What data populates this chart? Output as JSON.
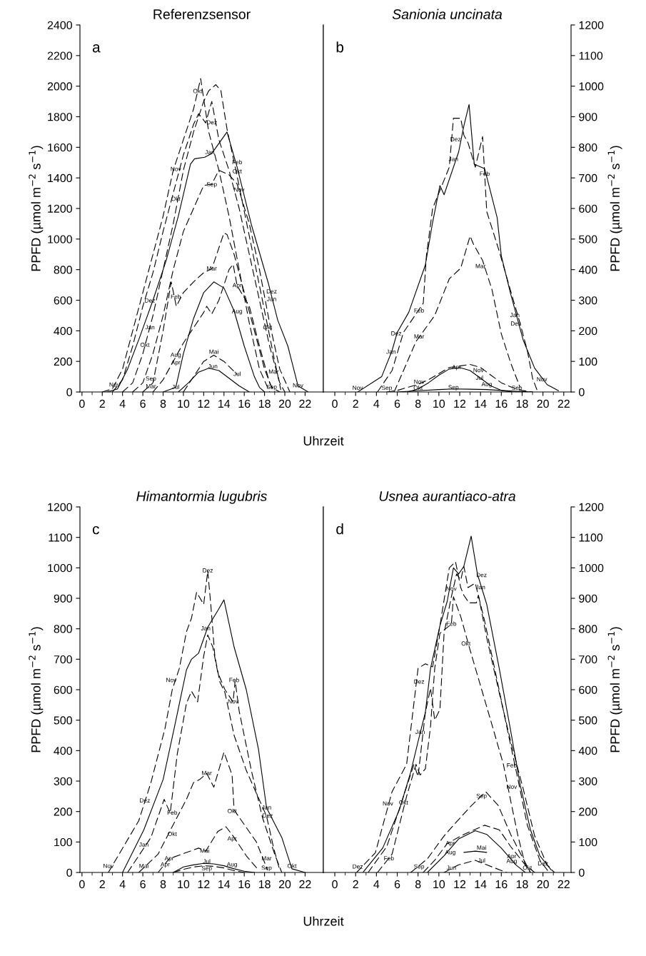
{
  "chart_data": [
    {
      "type": "line",
      "title": "Referenzsensor",
      "xlabel": "Uhrzeit",
      "ylabel": "PPFD (µmol m$^{−2}$ s$^{−1}$)",
      "xlim": [
        -0.2,
        23.8
      ],
      "xticks": [
        0,
        2,
        4,
        6,
        8,
        10,
        12,
        14,
        16,
        18,
        20,
        22
      ],
      "ylim": [
        0,
        2400
      ],
      "yticks": [
        0,
        200,
        400,
        600,
        800,
        1000,
        1200,
        1400,
        1600,
        1800,
        2000,
        2200,
        2400
      ],
      "series": [
        {
          "color": "#000000",
          "line_style": "dashed",
          "x": [
            2,
            3,
            4,
            5,
            6,
            7,
            8,
            9,
            10,
            11,
            11.7,
            12.5,
            13.5,
            14.5,
            15.5,
            16.5,
            17.5,
            18.5
          ],
          "values": [
            0,
            20,
            150,
            400,
            650,
            900,
            1150,
            1450,
            1650,
            1850,
            2050,
            1700,
            1450,
            1150,
            800,
            450,
            150,
            0
          ]
        },
        {
          "color": "#000000",
          "line_style": "dashed",
          "x": [
            4,
            5,
            6,
            7,
            8,
            9,
            10,
            11,
            12,
            12.5,
            13.2,
            13.7,
            14.3,
            15.3,
            16.5,
            17.7,
            18.9,
            19.6
          ],
          "values": [
            0,
            60,
            250,
            500,
            800,
            1100,
            1450,
            1700,
            1900,
            1970,
            2010,
            1970,
            1720,
            1410,
            1020,
            630,
            235,
            15
          ]
        },
        {
          "color": "#000000",
          "line_style": "dashed",
          "x": [
            3,
            4,
            5,
            6,
            7,
            8,
            9,
            10,
            11,
            11.5,
            12.2,
            12.8,
            13.5,
            14.5,
            15.5,
            16.5,
            17.5,
            18.5,
            19.5,
            20
          ],
          "values": [
            0,
            80,
            300,
            560,
            780,
            1050,
            1300,
            1550,
            1750,
            1820,
            1760,
            1900,
            1650,
            1450,
            1200,
            900,
            600,
            300,
            60,
            0
          ]
        },
        {
          "color": "#000000",
          "line_style": "solid",
          "x": [
            2.5,
            3.5,
            4.5,
            5.7,
            7,
            8.3,
            9.5,
            10.7,
            11.1,
            12.1,
            12.8,
            14.3,
            15.3,
            16.7,
            18.4,
            19.3,
            20.3,
            21.3,
            22.3
          ],
          "values": [
            0,
            20,
            150,
            360,
            600,
            860,
            1150,
            1490,
            1525,
            1535,
            1560,
            1700,
            1470,
            1095,
            705,
            470,
            300,
            40,
            0
          ]
        },
        {
          "color": "#000000",
          "line_style": "dashed",
          "x": [
            5,
            6,
            7,
            8,
            9,
            10,
            11,
            12,
            12.8,
            13.5,
            14.5,
            15.3,
            16.5,
            17.5,
            18.5,
            19.5,
            20.5
          ],
          "values": [
            0,
            60,
            250,
            500,
            800,
            1050,
            1200,
            1350,
            1360,
            1450,
            1420,
            1360,
            1100,
            800,
            450,
            150,
            0
          ]
        },
        {
          "color": "#000000",
          "line_style": "dashed",
          "x": [
            6,
            7,
            8,
            8.8,
            9.3,
            10,
            11,
            12,
            12.8,
            14,
            14.3,
            15,
            16,
            17,
            18,
            18.7,
            19.5
          ],
          "values": [
            0,
            60,
            400,
            720,
            560,
            650,
            720,
            780,
            805,
            1040,
            1030,
            900,
            650,
            400,
            150,
            30,
            0
          ]
        },
        {
          "color": "#000000",
          "line_style": "dashed",
          "x": [
            7,
            8,
            9,
            10,
            11,
            12,
            12.3,
            12.8,
            13.5,
            14.5,
            14.9,
            15.3,
            16.5,
            17.5,
            18.5,
            19
          ],
          "values": [
            0,
            80,
            200,
            320,
            420,
            520,
            560,
            510,
            600,
            800,
            835,
            695,
            560,
            300,
            60,
            0
          ]
        },
        {
          "color": "#000000",
          "line_style": "solid",
          "x": [
            8,
            9.25,
            10,
            11,
            12,
            13,
            14,
            15,
            16,
            17,
            17.5,
            18
          ],
          "values": [
            0,
            30,
            250,
            480,
            650,
            720,
            680,
            530,
            300,
            100,
            30,
            0
          ]
        },
        {
          "color": "#000000",
          "line_style": "dashed",
          "x": [
            10,
            11,
            12,
            13,
            14,
            15.3
          ],
          "values": [
            0,
            100,
            200,
            240,
            200,
            115
          ]
        },
        {
          "color": "#000000",
          "line_style": "solid",
          "x": [
            9.5,
            10.5,
            11.5,
            12.5,
            13.5,
            14.5,
            15.5,
            16.5
          ],
          "values": [
            0,
            60,
            130,
            155,
            140,
            90,
            40,
            0
          ]
        }
      ],
      "annotations": [
        "a",
        {
          "text": "Okt",
          "x": 11.4,
          "y": 1965
        },
        {
          "text": "Dez",
          "x": 12.8,
          "y": 1760
        },
        {
          "text": "Jan",
          "x": 12.6,
          "y": 1565
        },
        {
          "text": "Nov",
          "x": 9.25,
          "y": 1455
        },
        {
          "text": "Feb",
          "x": 15.3,
          "y": 1500
        },
        {
          "text": "Okt",
          "x": 15.3,
          "y": 1440
        },
        {
          "text": "Sep",
          "x": 12.8,
          "y": 1355
        },
        {
          "text": "Nov",
          "x": 15.5,
          "y": 1320
        },
        {
          "text": "Okt",
          "x": 9.25,
          "y": 1260
        },
        {
          "text": "Mar",
          "x": 12.8,
          "y": 805
        },
        {
          "text": "Apr",
          "x": 15.3,
          "y": 695
        },
        {
          "text": "Dez",
          "x": 6.7,
          "y": 595
        },
        {
          "text": "Feb",
          "x": 9.25,
          "y": 620
        },
        {
          "text": "Dez",
          "x": 18.7,
          "y": 655
        },
        {
          "text": "Jan",
          "x": 18.7,
          "y": 605
        },
        {
          "text": "Aug",
          "x": 15.3,
          "y": 525
        },
        {
          "text": "Jan",
          "x": 6.7,
          "y": 420
        },
        {
          "text": "Okt",
          "x": 6.2,
          "y": 305
        },
        {
          "text": "Okt",
          "x": 18.3,
          "y": 420
        },
        {
          "text": "Aug",
          "x": 9.25,
          "y": 240
        },
        {
          "text": "Apr",
          "x": 9.25,
          "y": 190
        },
        {
          "text": "Mai",
          "x": 13,
          "y": 260
        },
        {
          "text": "Jun",
          "x": 12.9,
          "y": 165
        },
        {
          "text": "Jul",
          "x": 15.3,
          "y": 115
        },
        {
          "text": "Mar",
          "x": 18.9,
          "y": 130
        },
        {
          "text": "Sep",
          "x": 6.8,
          "y": 85
        },
        {
          "text": "Mar",
          "x": 6.8,
          "y": 35
        },
        {
          "text": "Jul",
          "x": 9.25,
          "y": 30
        },
        {
          "text": "Sep",
          "x": 18.7,
          "y": 30
        },
        {
          "text": "Nov",
          "x": 3.2,
          "y": 45
        },
        {
          "text": "Nov",
          "x": 21.3,
          "y": 40
        }
      ]
    },
    {
      "type": "line",
      "title": "Sanionia uncinata",
      "ylabel": "PPFD (µmol m$^{−2}$ s$^{−1}$)",
      "xlim": [
        -1.1,
        22.7
      ],
      "xticks": [
        0,
        2,
        4,
        6,
        8,
        10,
        12,
        14,
        16,
        18,
        20,
        22
      ],
      "ylim": [
        0,
        1200
      ],
      "yticks": [
        0,
        100,
        200,
        300,
        400,
        500,
        600,
        700,
        800,
        900,
        1000,
        1100,
        1200
      ],
      "series": [
        {
          "color": "#000000",
          "line_style": "solid",
          "x": [
            2.2,
            4.5,
            5.5,
            6.0,
            7.1,
            8.7,
            9.4,
            10.1,
            10.5,
            11.9,
            12.4,
            12.9,
            13.4,
            14.4,
            15.6,
            16,
            16.9,
            18.1,
            19.2,
            20.4,
            21.5
          ],
          "values": [
            0,
            50,
            135,
            195,
            260,
            415,
            555,
            675,
            645,
            785,
            870,
            940,
            745,
            730,
            570,
            445,
            320,
            170,
            78,
            24,
            4
          ]
        },
        {
          "color": "#000000",
          "line_style": "dashed",
          "x": [
            4.1,
            5.5,
            6.6,
            8.5,
            8.8,
            9.4,
            11,
            11.4,
            12.1,
            12.4,
            12.8,
            13.5,
            14.2,
            14.6,
            15.8,
            16.9,
            17.8,
            18.5,
            19,
            19.5
          ],
          "values": [
            0,
            70,
            195,
            290,
            445,
            600,
            735,
            895,
            895,
            840,
            815,
            735,
            835,
            590,
            460,
            330,
            225,
            135,
            45,
            0
          ]
        },
        {
          "color": "#000000",
          "line_style": "dashed",
          "x": [
            5.7,
            6.6,
            7.8,
            9.6,
            11,
            12.1,
            13,
            13.3,
            14.2,
            15.1,
            16,
            16.9,
            17.8
          ],
          "values": [
            0,
            70,
            165,
            250,
            370,
            405,
            510,
            485,
            430,
            335,
            190,
            95,
            15
          ]
        },
        {
          "color": "#000000",
          "line_style": "dashed",
          "x": [
            5,
            6,
            7,
            8,
            9,
            10,
            11,
            12,
            13,
            14,
            15,
            16,
            17,
            18,
            19
          ],
          "values": [
            0,
            5,
            15,
            25,
            40,
            60,
            80,
            85,
            90,
            80,
            55,
            30,
            15,
            5,
            0
          ]
        },
        {
          "color": "#000000",
          "line_style": "solid",
          "x": [
            7,
            8,
            9,
            10,
            11,
            12,
            13,
            14,
            15,
            16,
            17
          ],
          "values": [
            0,
            10,
            30,
            55,
            75,
            80,
            70,
            45,
            20,
            5,
            0
          ]
        },
        {
          "color": "#000000",
          "line_style": "solid",
          "x": [
            6,
            8,
            10,
            11.4,
            13,
            14.6,
            16,
            17.5,
            19
          ],
          "values": [
            0,
            4,
            8,
            10,
            9,
            8,
            5,
            2,
            0
          ]
        }
      ],
      "annotations": [
        "b",
        {
          "text": "Dez",
          "x": 11.6,
          "y": 825
        },
        {
          "text": "Feb",
          "x": 14.4,
          "y": 712
        },
        {
          "text": "Jan",
          "x": 11.4,
          "y": 760
        },
        {
          "text": "Mar",
          "x": 14,
          "y": 410
        },
        {
          "text": "Feb",
          "x": 8.1,
          "y": 265
        },
        {
          "text": "Jan",
          "x": 17.3,
          "y": 250
        },
        {
          "text": "Dez",
          "x": 17.4,
          "y": 222
        },
        {
          "text": "Dez",
          "x": 5.9,
          "y": 190
        },
        {
          "text": "Jan",
          "x": 5.4,
          "y": 130
        },
        {
          "text": "Mar",
          "x": 8.1,
          "y": 180
        },
        {
          "text": "Nov",
          "x": 8.1,
          "y": 32
        },
        {
          "text": "Apr",
          "x": 11.7,
          "y": 80
        },
        {
          "text": "Nov",
          "x": 13.8,
          "y": 70
        },
        {
          "text": "Jul",
          "x": 13.9,
          "y": 45
        },
        {
          "text": "Nov",
          "x": 2.2,
          "y": 12
        },
        {
          "text": "Sep",
          "x": 5.0,
          "y": 12
        },
        {
          "text": "Okt",
          "x": 8.0,
          "y": 12
        },
        {
          "text": "Sep",
          "x": 11.4,
          "y": 14
        },
        {
          "text": "Aug",
          "x": 14.6,
          "y": 24
        },
        {
          "text": "Sep",
          "x": 17.5,
          "y": 12
        },
        {
          "text": "Nov",
          "x": 19.9,
          "y": 40
        }
      ]
    },
    {
      "type": "line",
      "title": "Himantormia lugubris",
      "xlabel": "Uhrzeit",
      "ylabel": "PPFD (µmol m$^{−2}$ s$^{−1}$)",
      "xlim": [
        -0.2,
        23.8
      ],
      "xticks": [
        0,
        2,
        4,
        6,
        8,
        10,
        12,
        14,
        16,
        18,
        20,
        22
      ],
      "ylim": [
        0,
        1200
      ],
      "yticks": [
        0,
        100,
        200,
        300,
        400,
        500,
        600,
        700,
        800,
        900,
        1000,
        1100,
        1200
      ],
      "series": [
        {
          "color": "#000000",
          "line_style": "dashed",
          "x": [
            2.6,
            5.6,
            6.8,
            8.2,
            8.9,
            9.6,
            10.3,
            10.8,
            11.3,
            12,
            12.4,
            12.7,
            13.1,
            13.6,
            14.1,
            15,
            16.2,
            18.2,
            18.9,
            19.5
          ],
          "values": [
            0,
            170,
            295,
            475,
            600,
            670,
            790,
            835,
            920,
            880,
            990,
            880,
            710,
            625,
            590,
            450,
            335,
            185,
            80,
            8
          ]
        },
        {
          "color": "#000000",
          "line_style": "solid",
          "x": [
            4,
            6.1,
            8,
            9.2,
            10.3,
            10.8,
            11.5,
            12.4,
            13.4,
            14,
            15,
            16.2,
            17.4,
            18.2,
            19.7,
            20.7,
            22
          ],
          "values": [
            0,
            140,
            305,
            490,
            665,
            700,
            720,
            805,
            860,
            895,
            740,
            600,
            405,
            212,
            115,
            12,
            0
          ]
        },
        {
          "color": "#000000",
          "line_style": "dashed",
          "x": [
            4.5,
            6.8,
            8.1,
            8.7,
            9.4,
            10.3,
            10.8,
            11.4,
            12,
            12.4,
            12.9,
            13.4,
            14.1,
            14.9,
            15.1,
            15.5,
            16.7,
            17.8,
            19,
            19.7
          ],
          "values": [
            0,
            115,
            240,
            195,
            390,
            555,
            595,
            560,
            710,
            780,
            740,
            655,
            600,
            560,
            630,
            530,
            335,
            180,
            60,
            0
          ]
        },
        {
          "color": "#000000",
          "line_style": "dashed",
          "x": [
            5.6,
            7.5,
            9.2,
            10.3,
            11,
            11.6,
            12.3,
            13,
            14,
            14.8,
            15.0,
            17.2,
            18.3
          ],
          "values": [
            0,
            60,
            170,
            240,
            295,
            305,
            325,
            280,
            395,
            320,
            205,
            100,
            8
          ]
        },
        {
          "color": "#000000",
          "line_style": "dashed",
          "x": [
            7.5,
            8.6,
            11.5,
            12.2,
            13.4,
            14.2,
            15,
            16.2,
            17.4
          ],
          "values": [
            0,
            45,
            80,
            70,
            135,
            150,
            115,
            55,
            8
          ]
        },
        {
          "color": "#000000",
          "line_style": "solid",
          "x": [
            9,
            10,
            11,
            12,
            13,
            14,
            15,
            16,
            17
          ],
          "values": [
            0,
            18,
            25,
            30,
            28,
            22,
            12,
            4,
            0
          ]
        },
        {
          "color": "#000000",
          "line_style": "dashed",
          "x": [
            9,
            10,
            11,
            12,
            13,
            14,
            15,
            16
          ],
          "values": [
            0,
            10,
            18,
            22,
            20,
            15,
            6,
            0
          ]
        }
      ],
      "annotations": [
        "c",
        {
          "text": "Dez",
          "x": 12.4,
          "y": 990
        },
        {
          "text": "Jan",
          "x": 12.2,
          "y": 800
        },
        {
          "text": "Nov",
          "x": 8.8,
          "y": 630
        },
        {
          "text": "Feb",
          "x": 15,
          "y": 630
        },
        {
          "text": "Nov",
          "x": 14.9,
          "y": 560
        },
        {
          "text": "Mar",
          "x": 12.3,
          "y": 325
        },
        {
          "text": "Dez",
          "x": 6.2,
          "y": 235
        },
        {
          "text": "Feb",
          "x": 8.9,
          "y": 195
        },
        {
          "text": "Okt",
          "x": 14.8,
          "y": 200
        },
        {
          "text": "Jan",
          "x": 18.2,
          "y": 212
        },
        {
          "text": "Dez",
          "x": 18.3,
          "y": 185
        },
        {
          "text": "Okt",
          "x": 8.9,
          "y": 125
        },
        {
          "text": "Apr",
          "x": 14.8,
          "y": 110
        },
        {
          "text": "Jan",
          "x": 6.1,
          "y": 90
        },
        {
          "text": "Mai",
          "x": 12.1,
          "y": 70
        },
        {
          "text": "Jul",
          "x": 12.3,
          "y": 35
        },
        {
          "text": "Sep",
          "x": 12.3,
          "y": 12
        },
        {
          "text": "Aug",
          "x": 14.8,
          "y": 25
        },
        {
          "text": "Apr",
          "x": 8.6,
          "y": 45
        },
        {
          "text": "Apr",
          "x": 8.2,
          "y": 25
        },
        {
          "text": "Nov",
          "x": 2.6,
          "y": 20
        },
        {
          "text": "Mai",
          "x": 6.1,
          "y": 20
        },
        {
          "text": "Mar",
          "x": 18.2,
          "y": 45
        },
        {
          "text": "Sep",
          "x": 18.2,
          "y": 14
        },
        {
          "text": "Okt",
          "x": 20.7,
          "y": 20
        }
      ]
    },
    {
      "type": "line",
      "title": "Usnea aurantiaco-atra",
      "ylabel": "PPFD (µmol m$^{−2}$ s$^{−1}$)",
      "xlim": [
        -1.1,
        22.7
      ],
      "xticks": [
        0,
        2,
        4,
        6,
        8,
        10,
        12,
        14,
        16,
        18,
        20,
        22
      ],
      "ylim": [
        0,
        1200
      ],
      "yticks": [
        0,
        100,
        200,
        300,
        400,
        500,
        600,
        700,
        800,
        900,
        1000,
        1100,
        1200
      ],
      "series": [
        {
          "color": "#000000",
          "line_style": "solid",
          "x": [
            2.7,
            4.6,
            6.2,
            7.3,
            8,
            8.7,
            9.2,
            10.1,
            10.8,
            11.4,
            11.9,
            12.4,
            13.1,
            13.7,
            14.6,
            15.8,
            16.9,
            17.8,
            18.8,
            19.7,
            20.8
          ],
          "values": [
            0,
            80,
            205,
            330,
            430,
            525,
            670,
            810,
            890,
            1000,
            980,
            1005,
            1104,
            980,
            880,
            670,
            465,
            290,
            140,
            55,
            8
          ]
        },
        {
          "color": "#000000",
          "line_style": "dashed",
          "x": [
            2.1,
            3.9,
            5.5,
            6.9,
            8,
            8.7,
            9.4,
            10.1,
            11,
            11.6,
            12.1,
            12.4,
            12.9,
            13.6,
            13.8,
            14.6,
            15.8,
            16.9,
            18.1,
            19.2,
            20.4,
            21.1
          ],
          "values": [
            0,
            65,
            265,
            355,
            670,
            685,
            675,
            810,
            1000,
            1020,
            935,
            910,
            885,
            885,
            910,
            770,
            590,
            430,
            275,
            120,
            25,
            0
          ]
        },
        {
          "color": "#000000",
          "line_style": "dashed",
          "x": [
            3.2,
            5,
            6.6,
            7.6,
            8,
            8.7,
            9.2,
            9.6,
            10.1,
            10.5,
            11.2,
            11.7,
            12.1,
            12.4,
            12.8,
            13.5,
            14.4,
            15.6,
            16.7,
            17.6,
            18.5,
            19.7,
            20.6
          ],
          "values": [
            0,
            85,
            250,
            355,
            315,
            525,
            605,
            500,
            535,
            785,
            905,
            980,
            960,
            1005,
            935,
            950,
            825,
            630,
            450,
            305,
            155,
            40,
            0
          ]
        },
        {
          "color": "#000000",
          "line_style": "dashed",
          "x": [
            4.1,
            5.5,
            6.9,
            7.8,
            8.2,
            8.7,
            9.2,
            9.6,
            10.1,
            11.2,
            11.4,
            12.1,
            13,
            14.2,
            15.1,
            16.2,
            16.9,
            17.6,
            18.3,
            18.8
          ],
          "values": [
            0,
            60,
            250,
            355,
            320,
            340,
            480,
            670,
            785,
            815,
            905,
            840,
            730,
            590,
            485,
            355,
            235,
            120,
            25,
            0
          ]
        },
        {
          "color": "#000000",
          "line_style": "dashed",
          "x": [
            7.3,
            8.9,
            10.5,
            11.4,
            13,
            14.5,
            15.7,
            16.9,
            18.1,
            18.8
          ],
          "values": [
            0,
            45,
            120,
            155,
            215,
            265,
            220,
            125,
            45,
            0
          ]
        },
        {
          "color": "#000000",
          "line_style": "dashed",
          "x": [
            8.5,
            9.6,
            10.8,
            12.4,
            14.4,
            15.8,
            16.9,
            18.3,
            19.2
          ],
          "values": [
            0,
            40,
            95,
            125,
            155,
            140,
            85,
            25,
            0
          ]
        },
        {
          "color": "#000000",
          "line_style": "solid",
          "x": [
            8.9,
            10.5,
            11.9,
            13.5,
            14.6,
            16,
            17.4,
            18.3
          ],
          "values": [
            0,
            55,
            110,
            137,
            125,
            80,
            25,
            0
          ]
        },
        {
          "color": "#000000",
          "line_style": "dashed",
          "x": [
            10.5,
            11.9,
            13.5,
            14.6,
            16.5
          ],
          "values": [
            0,
            25,
            40,
            25,
            0
          ]
        },
        {
          "color": "#000000",
          "line_style": "solid",
          "x": [
            12.4,
            13.5,
            14.6
          ],
          "values": [
            66,
            70,
            66
          ]
        }
      ],
      "annotations": [
        "d",
        {
          "text": "Dez",
          "x": 14.1,
          "y": 975
        },
        {
          "text": "Jan",
          "x": 14,
          "y": 935
        },
        {
          "text": "Nov",
          "x": 11.2,
          "y": 930
        },
        {
          "text": "Feb",
          "x": 11.2,
          "y": 815
        },
        {
          "text": "Okt",
          "x": 12.6,
          "y": 750
        },
        {
          "text": "Dez",
          "x": 8.1,
          "y": 625
        },
        {
          "text": "Jan",
          "x": 8.2,
          "y": 460
        },
        {
          "text": "Feb",
          "x": 17,
          "y": 350
        },
        {
          "text": "Nov",
          "x": 17,
          "y": 280
        },
        {
          "text": "Nov",
          "x": 5.1,
          "y": 225
        },
        {
          "text": "Okt",
          "x": 6.6,
          "y": 228
        },
        {
          "text": "Sep",
          "x": 14.1,
          "y": 250
        },
        {
          "text": "Apr",
          "x": 11.1,
          "y": 95
        },
        {
          "text": "Mai",
          "x": 14.1,
          "y": 80
        },
        {
          "text": "Aug",
          "x": 11.1,
          "y": 65
        },
        {
          "text": "Jul",
          "x": 14.1,
          "y": 38
        },
        {
          "text": "Feb",
          "x": 5.2,
          "y": 45
        },
        {
          "text": "Sep",
          "x": 8.1,
          "y": 18
        },
        {
          "text": "Apr",
          "x": 17,
          "y": 52
        },
        {
          "text": "Aug",
          "x": 17,
          "y": 36
        },
        {
          "text": "Okt",
          "x": 18.5,
          "y": 14
        },
        {
          "text": "Dez",
          "x": 20,
          "y": 28
        },
        {
          "text": "Dez",
          "x": 2.2,
          "y": 18
        },
        {
          "text": "Jun",
          "x": 11.2,
          "y": 14
        }
      ]
    }
  ]
}
